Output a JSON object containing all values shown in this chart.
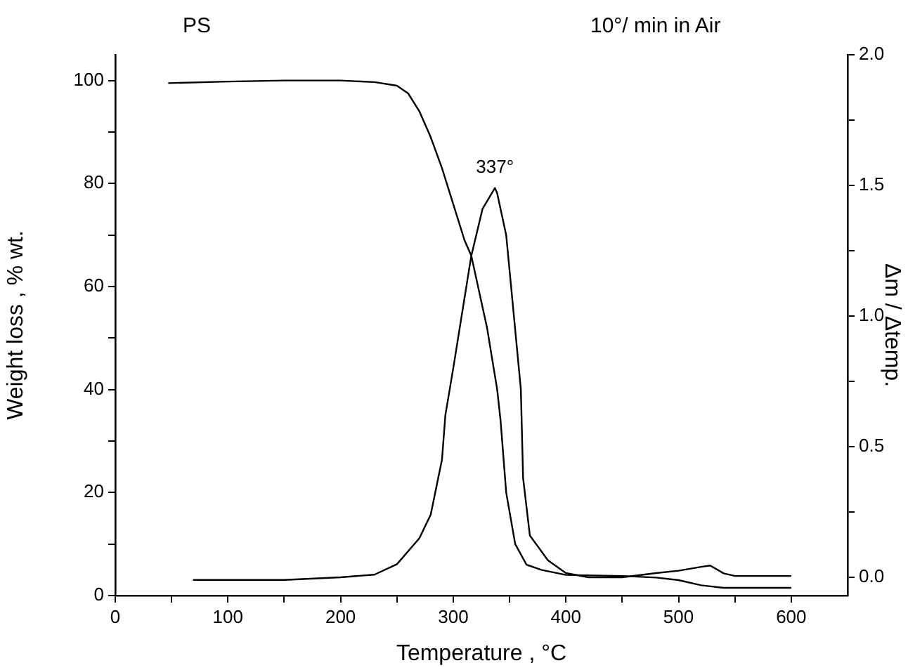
{
  "chart_data": {
    "type": "line",
    "title": "PS",
    "subtitle": "10°/ min in Air",
    "xlabel": "Temperature , °C",
    "ylabel": "Weight loss , % wt.",
    "y2label": "Δm / Δtemp.",
    "xlim": [
      0,
      650
    ],
    "xticks": [
      0,
      {
        "value": 50,
        "label": null
      },
      100,
      {
        "value": 150,
        "label": null
      },
      200,
      {
        "value": 250,
        "label": null
      },
      300,
      {
        "value": 350,
        "label": null
      },
      400,
      {
        "value": 450,
        "label": null
      },
      500,
      {
        "value": 550,
        "label": null
      },
      600
    ],
    "ylim": [
      0,
      105
    ],
    "yticks": [
      0,
      {
        "value": 10,
        "label": null
      },
      20,
      {
        "value": 30,
        "label": null
      },
      40,
      {
        "value": 50,
        "label": null
      },
      60,
      {
        "value": 70,
        "label": null
      },
      80,
      {
        "value": 90,
        "label": null
      },
      100
    ],
    "y2lim": [
      -0.07,
      2.0
    ],
    "y2ticks": [
      {
        "value": 0,
        "label": "0.0"
      },
      {
        "value": 0.25,
        "label": null
      },
      {
        "value": 0.5,
        "label": "0.5"
      },
      {
        "value": 0.75,
        "label": null
      },
      {
        "value": 1,
        "label": "1.0"
      },
      {
        "value": 1.25,
        "label": null
      },
      {
        "value": 1.5,
        "label": "1.5"
      },
      {
        "value": 1.75,
        "label": null
      },
      {
        "value": 2,
        "label": "2.0"
      }
    ],
    "series": [
      {
        "color": "#000000",
        "x": [
          47,
          100,
          150,
          200,
          230,
          250,
          260,
          270,
          280,
          290,
          300,
          310,
          316,
          320,
          330,
          339,
          342,
          347,
          355,
          365,
          378,
          400,
          450,
          480,
          500,
          520,
          540,
          600
        ],
        "values": [
          99.5,
          99.8,
          100,
          100,
          99.7,
          99,
          97.5,
          94,
          89,
          83,
          76,
          69,
          66,
          62,
          52,
          40,
          34,
          20,
          10,
          6,
          5,
          4,
          3.8,
          3.5,
          3,
          2,
          1.5,
          1.5
        ]
      },
      {
        "color": "#000000",
        "axis": "y2",
        "x": [
          69,
          100,
          150,
          200,
          230,
          250,
          270,
          280,
          290,
          293,
          300,
          316,
          326,
          337,
          339,
          347,
          360,
          362,
          368,
          384,
          400,
          420,
          450,
          480,
          500,
          520,
          528,
          540,
          550,
          600
        ],
        "values": [
          -0.01,
          -0.01,
          -0.01,
          0,
          0.01,
          0.05,
          0.15,
          0.24,
          0.45,
          0.62,
          0.8,
          1.23,
          1.41,
          1.49,
          1.47,
          1.31,
          0.72,
          0.38,
          0.16,
          0.065,
          0.016,
          0,
          0,
          0.016,
          0.025,
          0.04,
          0.045,
          0.015,
          0.005,
          0.005
        ]
      }
    ],
    "annotations": [
      "337°"
    ],
    "legend": false,
    "grid": false,
    "marker": "none",
    "line_style": "solid"
  }
}
